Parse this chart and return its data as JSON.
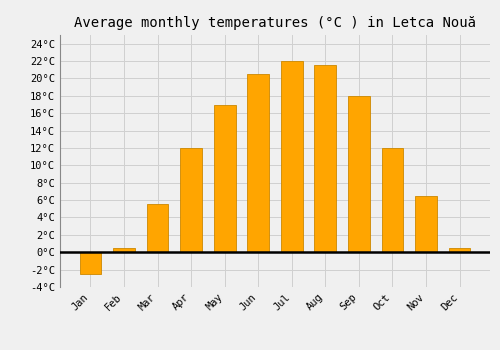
{
  "title": "Average monthly temperatures (°C ) in Letca Nouă",
  "months": [
    "Jan",
    "Feb",
    "Mar",
    "Apr",
    "May",
    "Jun",
    "Jul",
    "Aug",
    "Sep",
    "Oct",
    "Nov",
    "Dec"
  ],
  "values": [
    -2.5,
    0.5,
    5.5,
    12.0,
    17.0,
    20.5,
    22.0,
    21.5,
    18.0,
    12.0,
    6.5,
    0.5
  ],
  "bar_color": "#FFA500",
  "bar_edge_color": "#CC8800",
  "background_color": "#f0f0f0",
  "ylim": [
    -4,
    25
  ],
  "yticks": [
    -4,
    -2,
    0,
    2,
    4,
    6,
    8,
    10,
    12,
    14,
    16,
    18,
    20,
    22,
    24
  ],
  "ytick_labels": [
    "-4°C",
    "-2°C",
    "0°C",
    "2°C",
    "4°C",
    "6°C",
    "8°C",
    "10°C",
    "12°C",
    "14°C",
    "16°C",
    "18°C",
    "20°C",
    "22°C",
    "24°C"
  ],
  "title_fontsize": 10,
  "tick_fontsize": 7.5,
  "grid_color": "#d0d0d0",
  "zero_line_color": "#000000"
}
